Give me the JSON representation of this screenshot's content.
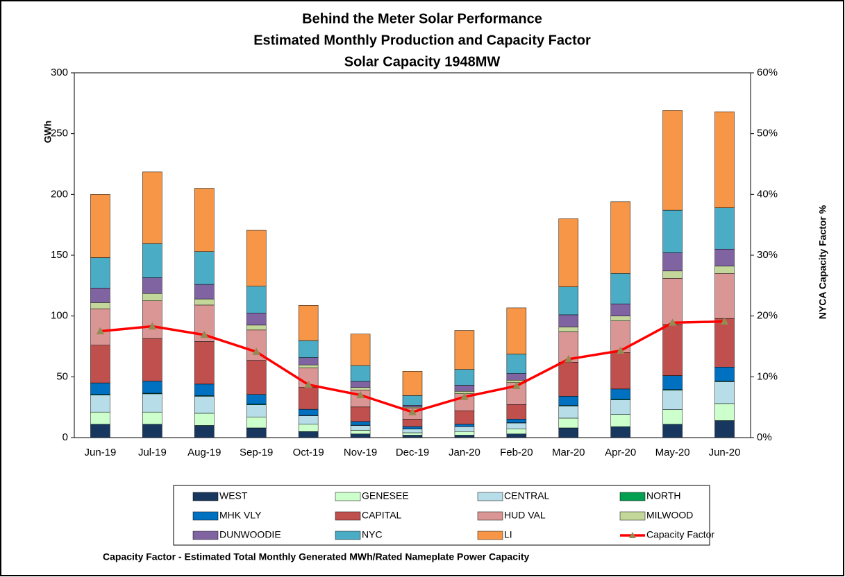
{
  "chart_data": {
    "type": "bar",
    "stacked": true,
    "title": [
      "Behind the Meter Solar Performance",
      "Estimated Monthly Production and Capacity Factor",
      "Solar Capacity 1948MW"
    ],
    "y_label": "GWh",
    "y2_label": "NYCA Capacity Factor %",
    "footnote": "Capacity Factor  - Estimated Total Monthly Generated MWh/Rated Nameplate Power Capacity",
    "categories": [
      "Jun-19",
      "Jul-19",
      "Aug-19",
      "Sep-19",
      "Oct-19",
      "Nov-19",
      "Dec-19",
      "Jan-20",
      "Feb-20",
      "Mar-20",
      "Apr-20",
      "May-20",
      "Jun-20"
    ],
    "ylim": [
      0,
      300
    ],
    "yticks": [
      0,
      50,
      100,
      150,
      200,
      250,
      300
    ],
    "y2lim": [
      0,
      60
    ],
    "y2ticks": [
      {
        "value": 0,
        "label": "0%"
      },
      {
        "value": 10,
        "label": "10%"
      },
      {
        "value": 20,
        "label": "20%"
      },
      {
        "value": 30,
        "label": "30%"
      },
      {
        "value": 40,
        "label": "40%"
      },
      {
        "value": 50,
        "label": "50%"
      },
      {
        "value": 60,
        "label": "60%"
      }
    ],
    "series": [
      {
        "name": "WEST",
        "color": "#17375e",
        "values": [
          11,
          11,
          10,
          8,
          5,
          3,
          2,
          2,
          3,
          8,
          9,
          11,
          14
        ]
      },
      {
        "name": "GENESEE",
        "color": "#ccffcc",
        "values": [
          10,
          10,
          10,
          9,
          6,
          3,
          2,
          3,
          4,
          8,
          10,
          12,
          14
        ]
      },
      {
        "name": "CENTRAL",
        "color": "#b7dde8",
        "values": [
          14,
          15,
          14,
          10,
          7,
          4,
          3,
          4,
          5,
          10,
          12,
          16,
          18
        ]
      },
      {
        "name": "NORTH",
        "color": "#00a050",
        "values": [
          0.5,
          0.5,
          0.5,
          0.5,
          0.3,
          0.2,
          0.1,
          0.1,
          0.2,
          0.5,
          0.5,
          0.5,
          0.5
        ]
      },
      {
        "name": "MHK VLY",
        "color": "#0070c0",
        "values": [
          9.5,
          10,
          9.5,
          8,
          5,
          3,
          2,
          2,
          3,
          7.5,
          8.5,
          11.5,
          11.5
        ]
      },
      {
        "name": "CAPITAL",
        "color": "#c0504d",
        "values": [
          31,
          35,
          35,
          28,
          18,
          12,
          6,
          11,
          12,
          28,
          30,
          42,
          40
        ]
      },
      {
        "name": "HUD VAL",
        "color": "#d99694",
        "values": [
          30,
          31,
          30,
          25,
          16,
          14,
          9,
          14,
          18,
          25,
          26,
          38,
          37
        ]
      },
      {
        "name": "MILWOOD",
        "color": "#c4d79b",
        "values": [
          5,
          6,
          5,
          4,
          2.5,
          2,
          1,
          2,
          2,
          4,
          4,
          6,
          6
        ]
      },
      {
        "name": "DUNWOODIE",
        "color": "#8064a2",
        "values": [
          12,
          13,
          12,
          10,
          6,
          5,
          1.5,
          5,
          5.5,
          10,
          10,
          15,
          14
        ]
      },
      {
        "name": "NYC",
        "color": "#4bacc6",
        "values": [
          25,
          28,
          27,
          22,
          14,
          13,
          8,
          13,
          16,
          23,
          25,
          35,
          34
        ]
      },
      {
        "name": "LI",
        "color": "#f79646",
        "values": [
          52,
          59,
          52,
          46,
          29,
          26,
          20,
          32,
          38,
          56,
          59,
          82,
          79
        ]
      },
      {
        "name": "Capacity Factor",
        "color": "#ff0000",
        "marker_color": "#948a54",
        "type": "line",
        "axis": "y2",
        "values": [
          17.5,
          18.3,
          16.9,
          14.1,
          8.7,
          7.0,
          4.2,
          6.7,
          8.5,
          12.9,
          14.3,
          18.9,
          19.1
        ]
      }
    ]
  }
}
